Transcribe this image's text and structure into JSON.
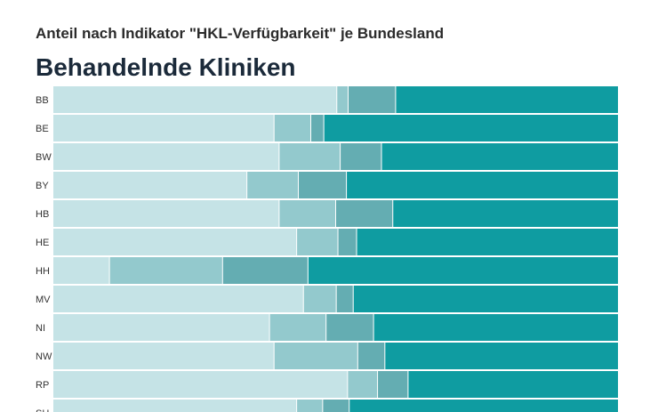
{
  "chart_data": {
    "type": "bar",
    "stacked": "100%",
    "orientation": "horizontal",
    "subtitle": "Anteil nach Indikator \"HKL-Verfügbarkeit\" je Bundesland",
    "title": "Behandelnde Kliniken",
    "categories": [
      "BB",
      "BE",
      "BW",
      "BY",
      "HB",
      "HE",
      "HH",
      "MV",
      "NI",
      "NW",
      "RP",
      "SH"
    ],
    "series": [
      {
        "color": "#c5e3e6",
        "values": [
          50.2,
          39.1,
          40.0,
          34.3,
          40.0,
          43.1,
          10.0,
          44.3,
          38.3,
          39.1,
          52.1,
          43.1
        ]
      },
      {
        "color": "#93c9cd",
        "values": [
          2.0,
          6.5,
          10.8,
          9.1,
          10.0,
          7.3,
          20.0,
          5.8,
          10.0,
          14.8,
          5.3,
          4.6
        ]
      },
      {
        "color": "#64adb2",
        "values": [
          8.4,
          2.3,
          7.3,
          8.5,
          10.1,
          3.3,
          15.1,
          3.0,
          8.4,
          4.8,
          5.4,
          4.7
        ]
      },
      {
        "color": "#0f9ca1",
        "values": [
          39.4,
          52.1,
          41.9,
          48.1,
          39.9,
          46.3,
          54.9,
          46.9,
          43.3,
          41.3,
          37.2,
          47.6
        ]
      }
    ]
  }
}
